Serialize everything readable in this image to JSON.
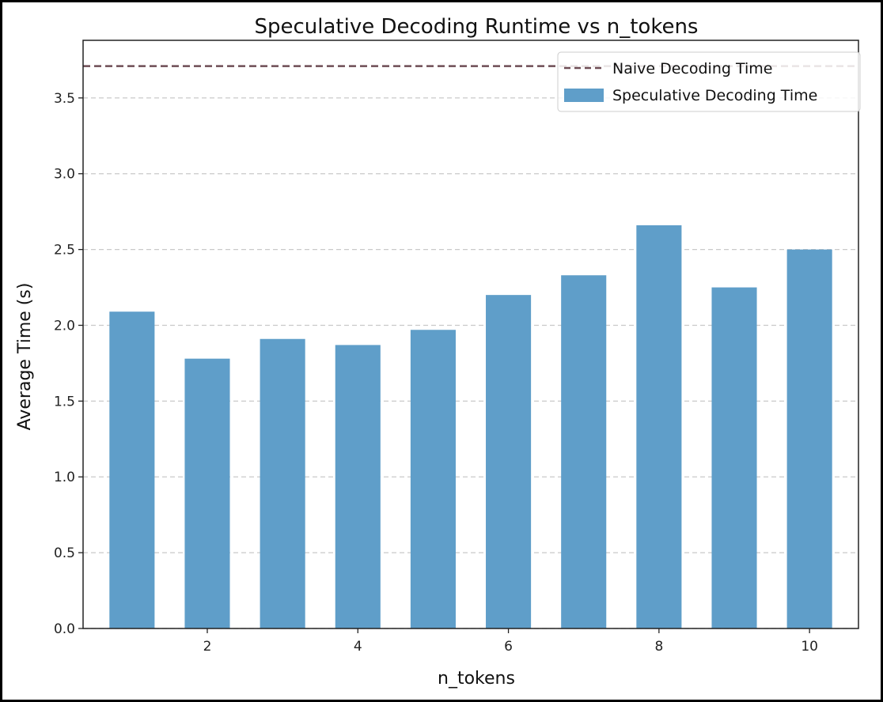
{
  "chart_data": {
    "type": "bar",
    "title": "Speculative Decoding Runtime vs n_tokens",
    "xlabel": "n_tokens",
    "ylabel": "Average Time (s)",
    "x": [
      1,
      2,
      3,
      4,
      5,
      6,
      7,
      8,
      9,
      10
    ],
    "values": [
      2.09,
      1.78,
      1.91,
      1.87,
      1.97,
      2.2,
      2.33,
      2.66,
      2.25,
      2.5
    ],
    "xlim": [
      0.35,
      10.65
    ],
    "ylim": [
      0,
      3.88
    ],
    "xticks": [
      2,
      4,
      6,
      8,
      10
    ],
    "xtick_labels": [
      "2",
      "4",
      "6",
      "8",
      "10"
    ],
    "yticks": [
      0,
      0.5,
      1,
      1.5,
      2,
      2.5,
      3,
      3.5
    ],
    "ytick_labels": [
      "0.0",
      "0.5",
      "1.0",
      "1.5",
      "2.0",
      "2.5",
      "3.0",
      "3.5"
    ],
    "grid": "y dashed",
    "bar_color": "#5f9ec9",
    "baseline": {
      "value": 3.71,
      "color": "#6e4d55",
      "style": "dashed"
    },
    "legend": {
      "placement": "top-right",
      "entries": [
        "Naive Decoding Time",
        "Speculative Decoding Time"
      ]
    }
  }
}
